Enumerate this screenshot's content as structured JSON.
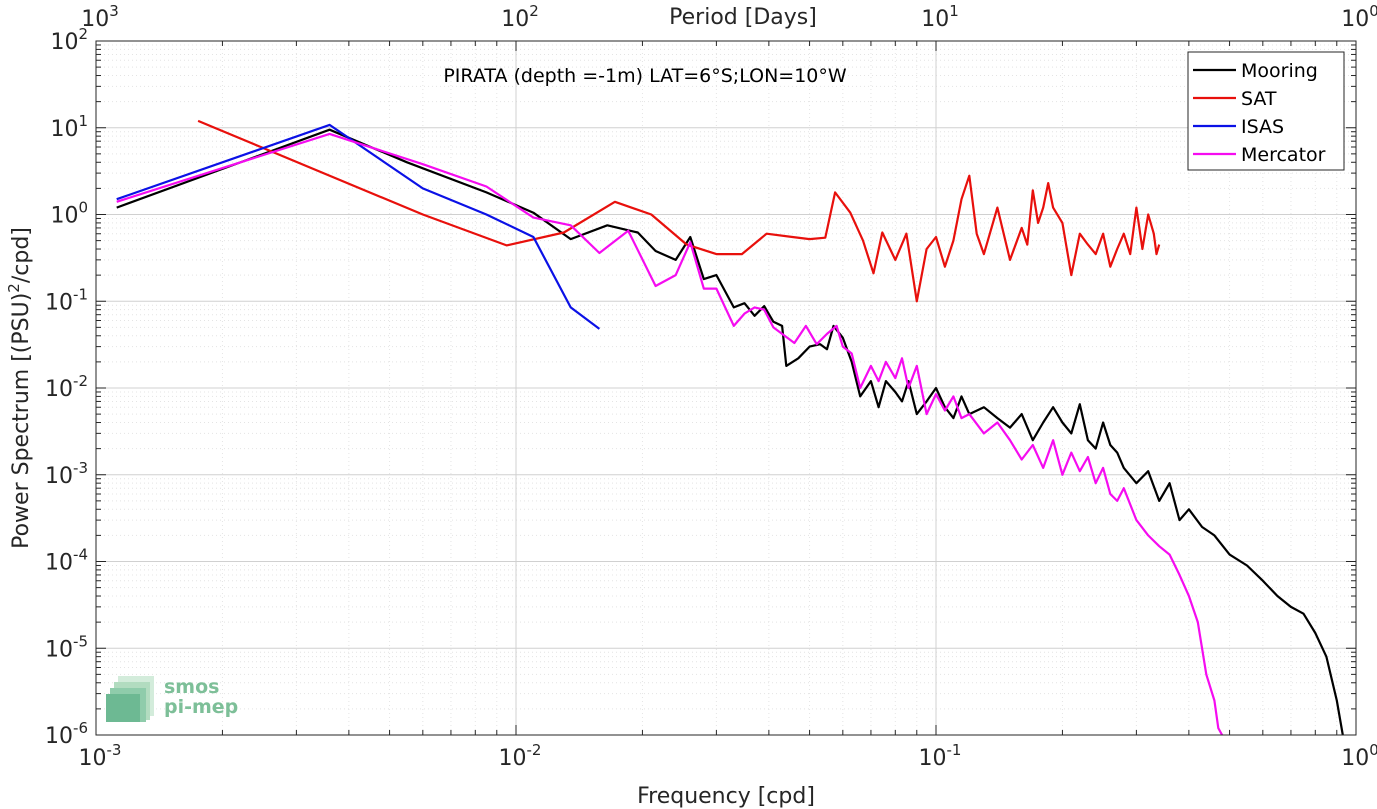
{
  "chart_data": {
    "type": "line",
    "title": "PIRATA (depth =-1m) LAT=6°S;LON=10°W",
    "xlabel": "Frequency [cpd]",
    "ylabel": "Power Spectrum [(PSU)²/cpd]",
    "ylabel_parts": {
      "base": "Power Spectrum [(PSU)",
      "sup": "2",
      "tail": "/cpd]"
    },
    "top_xlabel": "Period [Days]",
    "xscale": "log",
    "yscale": "log",
    "xlim": [
      0.001,
      1
    ],
    "ylim": [
      1e-06,
      100
    ],
    "x_ticks": [
      {
        "v": 0.001,
        "base": "10",
        "exp": "-3"
      },
      {
        "v": 0.01,
        "base": "10",
        "exp": "-2"
      },
      {
        "v": 0.1,
        "base": "10",
        "exp": "-1"
      },
      {
        "v": 1,
        "base": "10",
        "exp": "0"
      }
    ],
    "top_ticks": [
      {
        "v": 0.001,
        "base": "10",
        "exp": "3"
      },
      {
        "v": 0.01,
        "base": "10",
        "exp": "2"
      },
      {
        "v": 0.1,
        "base": "10",
        "exp": "1"
      },
      {
        "v": 1,
        "base": "10",
        "exp": "0"
      }
    ],
    "y_ticks": [
      {
        "v": 1e-06,
        "base": "10",
        "exp": "-6"
      },
      {
        "v": 1e-05,
        "base": "10",
        "exp": "-5"
      },
      {
        "v": 0.0001,
        "base": "10",
        "exp": "-4"
      },
      {
        "v": 0.001,
        "base": "10",
        "exp": "-3"
      },
      {
        "v": 0.01,
        "base": "10",
        "exp": "-2"
      },
      {
        "v": 0.1,
        "base": "10",
        "exp": "-1"
      },
      {
        "v": 1,
        "base": "10",
        "exp": "0"
      },
      {
        "v": 10,
        "base": "10",
        "exp": "1"
      },
      {
        "v": 100,
        "base": "10",
        "exp": "2"
      }
    ],
    "grid": true,
    "legend_position": "top-right",
    "series": [
      {
        "name": "Mooring",
        "color": "#000000",
        "points": [
          [
            0.00112,
            1.2
          ],
          [
            0.0036,
            9.5
          ],
          [
            0.0055,
            4.0
          ],
          [
            0.0085,
            1.8
          ],
          [
            0.011,
            1.05
          ],
          [
            0.0135,
            0.52
          ],
          [
            0.0165,
            0.75
          ],
          [
            0.0195,
            0.62
          ],
          [
            0.0215,
            0.38
          ],
          [
            0.024,
            0.3
          ],
          [
            0.026,
            0.55
          ],
          [
            0.028,
            0.18
          ],
          [
            0.03,
            0.2
          ],
          [
            0.033,
            0.085
          ],
          [
            0.035,
            0.095
          ],
          [
            0.037,
            0.068
          ],
          [
            0.039,
            0.088
          ],
          [
            0.041,
            0.058
          ],
          [
            0.043,
            0.052
          ],
          [
            0.044,
            0.018
          ],
          [
            0.047,
            0.022
          ],
          [
            0.05,
            0.03
          ],
          [
            0.053,
            0.032
          ],
          [
            0.055,
            0.028
          ],
          [
            0.057,
            0.052
          ],
          [
            0.06,
            0.038
          ],
          [
            0.063,
            0.02
          ],
          [
            0.066,
            0.008
          ],
          [
            0.07,
            0.012
          ],
          [
            0.073,
            0.006
          ],
          [
            0.076,
            0.012
          ],
          [
            0.08,
            0.009
          ],
          [
            0.083,
            0.007
          ],
          [
            0.086,
            0.012
          ],
          [
            0.09,
            0.005
          ],
          [
            0.095,
            0.007
          ],
          [
            0.1,
            0.01
          ],
          [
            0.105,
            0.006
          ],
          [
            0.11,
            0.0045
          ],
          [
            0.115,
            0.008
          ],
          [
            0.12,
            0.005
          ],
          [
            0.13,
            0.006
          ],
          [
            0.14,
            0.0045
          ],
          [
            0.15,
            0.0035
          ],
          [
            0.16,
            0.005
          ],
          [
            0.17,
            0.0025
          ],
          [
            0.18,
            0.004
          ],
          [
            0.19,
            0.006
          ],
          [
            0.2,
            0.004
          ],
          [
            0.21,
            0.003
          ],
          [
            0.22,
            0.0065
          ],
          [
            0.23,
            0.0025
          ],
          [
            0.24,
            0.002
          ],
          [
            0.25,
            0.004
          ],
          [
            0.26,
            0.0022
          ],
          [
            0.27,
            0.0018
          ],
          [
            0.28,
            0.0012
          ],
          [
            0.3,
            0.0008
          ],
          [
            0.32,
            0.0011
          ],
          [
            0.34,
            0.0005
          ],
          [
            0.36,
            0.0008
          ],
          [
            0.38,
            0.0003
          ],
          [
            0.4,
            0.0004
          ],
          [
            0.43,
            0.00025
          ],
          [
            0.46,
            0.0002
          ],
          [
            0.5,
            0.00012
          ],
          [
            0.55,
            9e-05
          ],
          [
            0.6,
            6e-05
          ],
          [
            0.65,
            4e-05
          ],
          [
            0.7,
            3e-05
          ],
          [
            0.75,
            2.5e-05
          ],
          [
            0.8,
            1.5e-05
          ],
          [
            0.85,
            8e-06
          ],
          [
            0.9,
            2.5e-06
          ],
          [
            0.93,
            1e-06
          ]
        ]
      },
      {
        "name": "SAT",
        "color": "#e8100c",
        "points": [
          [
            0.00175,
            12.0
          ],
          [
            0.006,
            1.0
          ],
          [
            0.0095,
            0.44
          ],
          [
            0.013,
            0.62
          ],
          [
            0.0172,
            1.4
          ],
          [
            0.021,
            1.0
          ],
          [
            0.0255,
            0.45
          ],
          [
            0.03,
            0.35
          ],
          [
            0.0345,
            0.35
          ],
          [
            0.0395,
            0.6
          ],
          [
            0.0455,
            0.55
          ],
          [
            0.05,
            0.52
          ],
          [
            0.0545,
            0.54
          ],
          [
            0.0575,
            1.8
          ],
          [
            0.0625,
            1.05
          ],
          [
            0.067,
            0.5
          ],
          [
            0.071,
            0.21
          ],
          [
            0.0745,
            0.62
          ],
          [
            0.08,
            0.3
          ],
          [
            0.085,
            0.6
          ],
          [
            0.09,
            0.1
          ],
          [
            0.095,
            0.4
          ],
          [
            0.1,
            0.55
          ],
          [
            0.105,
            0.25
          ],
          [
            0.11,
            0.5
          ],
          [
            0.115,
            1.5
          ],
          [
            0.12,
            2.8
          ],
          [
            0.125,
            0.6
          ],
          [
            0.13,
            0.35
          ],
          [
            0.14,
            1.2
          ],
          [
            0.15,
            0.3
          ],
          [
            0.16,
            0.7
          ],
          [
            0.165,
            0.45
          ],
          [
            0.17,
            1.9
          ],
          [
            0.175,
            0.8
          ],
          [
            0.18,
            1.2
          ],
          [
            0.185,
            2.3
          ],
          [
            0.19,
            1.2
          ],
          [
            0.2,
            0.8
          ],
          [
            0.21,
            0.2
          ],
          [
            0.22,
            0.6
          ],
          [
            0.23,
            0.45
          ],
          [
            0.24,
            0.35
          ],
          [
            0.25,
            0.6
          ],
          [
            0.26,
            0.25
          ],
          [
            0.27,
            0.4
          ],
          [
            0.28,
            0.6
          ],
          [
            0.29,
            0.35
          ],
          [
            0.3,
            1.2
          ],
          [
            0.31,
            0.4
          ],
          [
            0.32,
            1.0
          ],
          [
            0.33,
            0.6
          ],
          [
            0.335,
            0.35
          ],
          [
            0.34,
            0.45
          ]
        ]
      },
      {
        "name": "ISAS",
        "color": "#0b11e6",
        "points": [
          [
            0.00112,
            1.5
          ],
          [
            0.0036,
            10.8
          ],
          [
            0.006,
            2.0
          ],
          [
            0.0085,
            1.0
          ],
          [
            0.011,
            0.55
          ],
          [
            0.0135,
            0.085
          ],
          [
            0.0158,
            0.048
          ]
        ]
      },
      {
        "name": "Mercator",
        "color": "#f50cf0",
        "points": [
          [
            0.00112,
            1.4
          ],
          [
            0.0036,
            8.5
          ],
          [
            0.006,
            3.8
          ],
          [
            0.0085,
            2.1
          ],
          [
            0.011,
            0.92
          ],
          [
            0.0135,
            0.75
          ],
          [
            0.0158,
            0.36
          ],
          [
            0.0185,
            0.65
          ],
          [
            0.0215,
            0.15
          ],
          [
            0.024,
            0.2
          ],
          [
            0.026,
            0.48
          ],
          [
            0.028,
            0.14
          ],
          [
            0.03,
            0.14
          ],
          [
            0.033,
            0.052
          ],
          [
            0.035,
            0.072
          ],
          [
            0.037,
            0.085
          ],
          [
            0.039,
            0.08
          ],
          [
            0.041,
            0.05
          ],
          [
            0.043,
            0.042
          ],
          [
            0.046,
            0.033
          ],
          [
            0.049,
            0.052
          ],
          [
            0.052,
            0.032
          ],
          [
            0.055,
            0.042
          ],
          [
            0.058,
            0.052
          ],
          [
            0.06,
            0.03
          ],
          [
            0.063,
            0.025
          ],
          [
            0.066,
            0.01
          ],
          [
            0.07,
            0.018
          ],
          [
            0.073,
            0.012
          ],
          [
            0.076,
            0.02
          ],
          [
            0.08,
            0.013
          ],
          [
            0.083,
            0.022
          ],
          [
            0.086,
            0.01
          ],
          [
            0.09,
            0.018
          ],
          [
            0.095,
            0.005
          ],
          [
            0.1,
            0.0085
          ],
          [
            0.105,
            0.0055
          ],
          [
            0.11,
            0.008
          ],
          [
            0.115,
            0.0045
          ],
          [
            0.12,
            0.005
          ],
          [
            0.13,
            0.003
          ],
          [
            0.14,
            0.004
          ],
          [
            0.15,
            0.0025
          ],
          [
            0.16,
            0.0015
          ],
          [
            0.17,
            0.0022
          ],
          [
            0.18,
            0.0012
          ],
          [
            0.19,
            0.0025
          ],
          [
            0.2,
            0.001
          ],
          [
            0.21,
            0.0018
          ],
          [
            0.22,
            0.0011
          ],
          [
            0.23,
            0.0016
          ],
          [
            0.24,
            0.0008
          ],
          [
            0.25,
            0.0012
          ],
          [
            0.26,
            0.0006
          ],
          [
            0.27,
            0.0005
          ],
          [
            0.28,
            0.0007
          ],
          [
            0.3,
            0.0003
          ],
          [
            0.32,
            0.0002
          ],
          [
            0.34,
            0.00015
          ],
          [
            0.36,
            0.00012
          ],
          [
            0.38,
            7e-05
          ],
          [
            0.4,
            4e-05
          ],
          [
            0.42,
            2e-05
          ],
          [
            0.44,
            5e-06
          ],
          [
            0.46,
            2.5e-06
          ],
          [
            0.47,
            1.2e-06
          ],
          [
            0.48,
            1e-06
          ]
        ]
      }
    ]
  },
  "logo": {
    "line1": "smos",
    "line2": "pi-mep"
  }
}
